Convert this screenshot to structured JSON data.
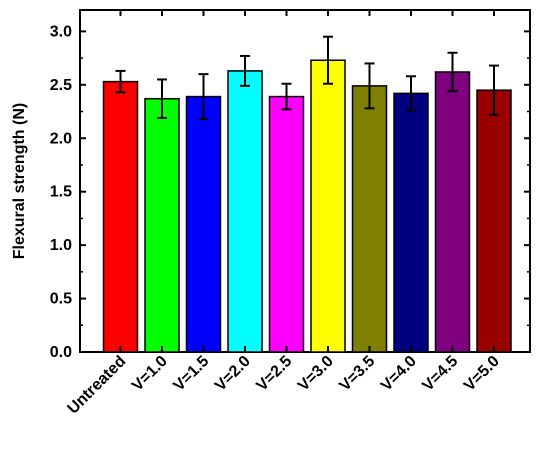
{
  "chart_data": {
    "type": "bar",
    "title": "",
    "xlabel": "",
    "ylabel": "Flexural strength (N)",
    "ylim": [
      0.0,
      3.2
    ],
    "yticks": [
      "0.0",
      "0.5",
      "1.0",
      "1.5",
      "2.0",
      "2.5",
      "3.0"
    ],
    "grid": false,
    "categories": [
      "Untreated",
      "V=1.0",
      "V=1.5",
      "V=2.0",
      "V=2.5",
      "V=3.0",
      "V=3.5",
      "V=4.0",
      "V=4.5",
      "V=5.0"
    ],
    "values": [
      2.53,
      2.37,
      2.39,
      2.63,
      2.39,
      2.73,
      2.49,
      2.42,
      2.62,
      2.45
    ],
    "errors": [
      0.1,
      0.18,
      0.21,
      0.14,
      0.12,
      0.22,
      0.21,
      0.16,
      0.18,
      0.23
    ],
    "colors": [
      "#ff0000",
      "#00ff00",
      "#0000ff",
      "#00ffff",
      "#ff00ff",
      "#ffff00",
      "#808000",
      "#000080",
      "#800080",
      "#990000"
    ]
  }
}
